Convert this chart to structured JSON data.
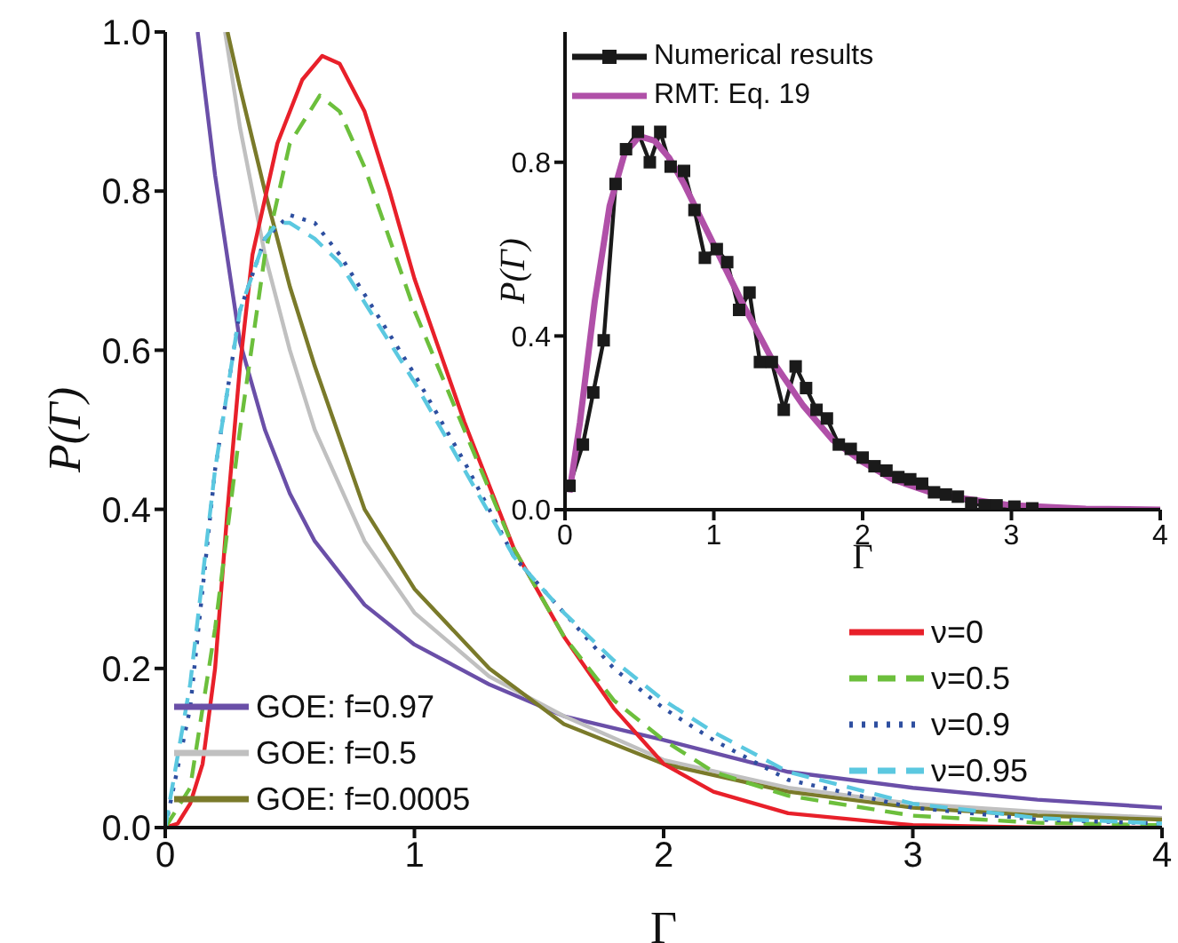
{
  "chart_data": [
    {
      "type": "line",
      "xlabel": "Γ",
      "ylabel": "P(Γ)",
      "xlim": [
        0,
        4
      ],
      "ylim": [
        0,
        1
      ],
      "xticks": [
        0,
        1,
        2,
        3,
        4
      ],
      "yticks": [
        {
          "value": 0,
          "label": "0.0"
        },
        {
          "value": 0.2,
          "label": "0.2"
        },
        {
          "value": 0.4,
          "label": "0.4"
        },
        {
          "value": 0.6,
          "label": "0.6"
        },
        {
          "value": 0.8,
          "label": "0.8"
        },
        {
          "value": 1,
          "label": "1.0"
        }
      ],
      "grid": false,
      "legend": "bottom",
      "marker": "none",
      "series": [
        {
          "name": "GOE: f=0.97",
          "color": "#6a4fa8",
          "line_style": "solid",
          "x": [
            0.13,
            0.2,
            0.3,
            0.4,
            0.5,
            0.6,
            0.8,
            1.0,
            1.3,
            1.6,
            2.0,
            2.5,
            3.0,
            3.5,
            4.0
          ],
          "values": [
            1.0,
            0.82,
            0.61,
            0.5,
            0.42,
            0.36,
            0.28,
            0.23,
            0.18,
            0.14,
            0.11,
            0.07,
            0.05,
            0.035,
            0.025
          ]
        },
        {
          "name": "GOE: f=0.5",
          "color": "#c0c0c0",
          "line_style": "solid",
          "x": [
            0.24,
            0.3,
            0.4,
            0.5,
            0.6,
            0.8,
            1.0,
            1.3,
            1.6,
            2.0,
            2.5,
            3.0,
            3.5,
            4.0
          ],
          "values": [
            1.0,
            0.88,
            0.72,
            0.6,
            0.5,
            0.36,
            0.27,
            0.19,
            0.14,
            0.085,
            0.05,
            0.03,
            0.02,
            0.012
          ]
        },
        {
          "name": "GOE: f=0.0005",
          "color": "#7a7a2a",
          "line_style": "solid",
          "x": [
            0.25,
            0.3,
            0.4,
            0.5,
            0.6,
            0.8,
            1.0,
            1.3,
            1.6,
            2.0,
            2.5,
            3.0,
            3.5,
            4.0
          ],
          "values": [
            1.0,
            0.93,
            0.8,
            0.68,
            0.58,
            0.4,
            0.3,
            0.2,
            0.13,
            0.08,
            0.045,
            0.025,
            0.015,
            0.01
          ]
        },
        {
          "name": "ν=0",
          "color": "#e8202a",
          "line_style": "solid",
          "x": [
            0,
            0.05,
            0.1,
            0.15,
            0.2,
            0.25,
            0.3,
            0.35,
            0.45,
            0.55,
            0.63,
            0.7,
            0.8,
            0.9,
            1.0,
            1.1,
            1.2,
            1.4,
            1.6,
            1.8,
            2.0,
            2.2,
            2.5,
            3.0,
            3.5,
            4.0
          ],
          "values": [
            0,
            0.005,
            0.03,
            0.08,
            0.2,
            0.4,
            0.58,
            0.72,
            0.86,
            0.94,
            0.97,
            0.96,
            0.9,
            0.8,
            0.69,
            0.6,
            0.51,
            0.35,
            0.24,
            0.15,
            0.08,
            0.045,
            0.018,
            0.003,
            0,
            0
          ]
        },
        {
          "name": "ν=0.5",
          "color": "#6cbf3c",
          "line_style": "dashed",
          "x": [
            0,
            0.1,
            0.2,
            0.3,
            0.4,
            0.5,
            0.62,
            0.7,
            0.8,
            0.9,
            1.0,
            1.2,
            1.4,
            1.6,
            1.8,
            2.0,
            2.2,
            2.5,
            3.0,
            3.5,
            4.0
          ],
          "values": [
            0,
            0.05,
            0.25,
            0.5,
            0.72,
            0.86,
            0.92,
            0.9,
            0.83,
            0.74,
            0.65,
            0.5,
            0.35,
            0.24,
            0.16,
            0.11,
            0.07,
            0.04,
            0.015,
            0.006,
            0.003
          ]
        },
        {
          "name": "ν=0.9",
          "color": "#2e4fa0",
          "line_style": "dotted",
          "x": [
            0,
            0.1,
            0.2,
            0.3,
            0.4,
            0.5,
            0.6,
            0.7,
            0.8,
            1.0,
            1.2,
            1.4,
            1.6,
            1.8,
            2.0,
            2.2,
            2.5,
            3.0,
            3.5,
            4.0
          ],
          "values": [
            0,
            0.15,
            0.45,
            0.65,
            0.74,
            0.77,
            0.76,
            0.72,
            0.67,
            0.57,
            0.46,
            0.34,
            0.27,
            0.2,
            0.15,
            0.11,
            0.06,
            0.025,
            0.01,
            0.005
          ]
        },
        {
          "name": "ν=0.95",
          "color": "#5bc8e0",
          "line_style": "dashed",
          "x": [
            0,
            0.1,
            0.2,
            0.3,
            0.4,
            0.45,
            0.5,
            0.6,
            0.7,
            0.8,
            1.0,
            1.2,
            1.4,
            1.6,
            1.8,
            2.0,
            2.2,
            2.5,
            3.0,
            3.5,
            4.0
          ],
          "values": [
            0,
            0.18,
            0.45,
            0.65,
            0.74,
            0.76,
            0.76,
            0.74,
            0.71,
            0.66,
            0.56,
            0.45,
            0.34,
            0.27,
            0.21,
            0.16,
            0.12,
            0.07,
            0.03,
            0.012,
            0.005
          ]
        }
      ]
    },
    {
      "type": "line",
      "xlabel": "Γ",
      "ylabel": "P(Γ)",
      "xlim": [
        0,
        4
      ],
      "ylim": [
        0,
        1.1
      ],
      "xticks": [
        0,
        1,
        2,
        3,
        4
      ],
      "yticks": [
        {
          "value": 0,
          "label": "0.0"
        },
        {
          "value": 0.4,
          "label": "0.4"
        },
        {
          "value": 0.8,
          "label": "0.8"
        }
      ],
      "grid": false,
      "legend": "top left",
      "series": [
        {
          "name": "Numerical results",
          "color": "#1a1a1a",
          "marker": "square",
          "line_style": "solid",
          "x": [
            0.03,
            0.12,
            0.19,
            0.26,
            0.34,
            0.41,
            0.49,
            0.57,
            0.64,
            0.71,
            0.8,
            0.87,
            0.94,
            1.02,
            1.09,
            1.17,
            1.24,
            1.31,
            1.39,
            1.47,
            1.55,
            1.62,
            1.69,
            1.76,
            1.84,
            1.92,
            2.0,
            2.08,
            2.16,
            2.24,
            2.32,
            2.4,
            2.48,
            2.56,
            2.64,
            2.73,
            2.82,
            2.9,
            3.02,
            3.14
          ],
          "values": [
            0.055,
            0.15,
            0.27,
            0.39,
            0.75,
            0.83,
            0.87,
            0.8,
            0.87,
            0.79,
            0.78,
            0.69,
            0.58,
            0.6,
            0.57,
            0.46,
            0.5,
            0.34,
            0.34,
            0.23,
            0.33,
            0.28,
            0.23,
            0.21,
            0.15,
            0.14,
            0.12,
            0.1,
            0.09,
            0.075,
            0.07,
            0.06,
            0.04,
            0.035,
            0.03,
            0.015,
            0.01,
            0.01,
            0.007,
            0.003
          ]
        },
        {
          "name": "RMT: Eq. 19",
          "color": "#b050a8",
          "marker": "none",
          "line_style": "solid",
          "x": [
            0.03,
            0.1,
            0.2,
            0.3,
            0.4,
            0.5,
            0.6,
            0.7,
            0.8,
            1.0,
            1.2,
            1.4,
            1.6,
            1.8,
            2.0,
            2.2,
            2.5,
            3.0,
            3.5,
            4.0
          ],
          "values": [
            0.04,
            0.2,
            0.48,
            0.7,
            0.82,
            0.86,
            0.85,
            0.81,
            0.75,
            0.61,
            0.47,
            0.34,
            0.24,
            0.16,
            0.11,
            0.07,
            0.035,
            0.01,
            0.002,
            0
          ]
        }
      ]
    }
  ]
}
